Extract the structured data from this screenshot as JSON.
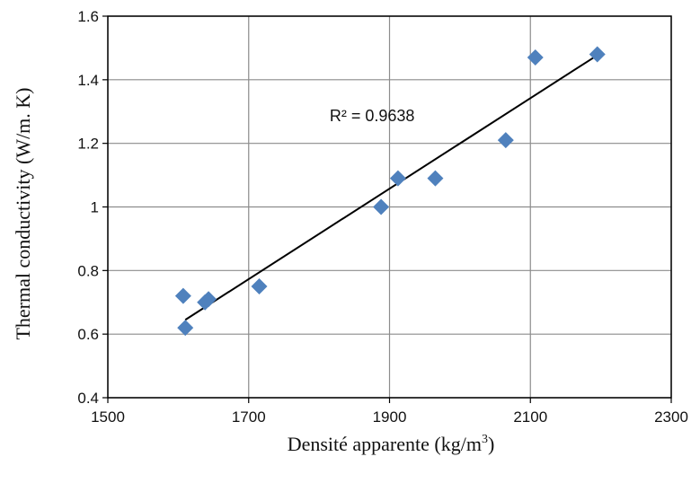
{
  "chart_data": {
    "type": "scatter",
    "title": "",
    "xlabel_prefix": "Densité apparente (kg/m",
    "xlabel_sup": "3",
    "xlabel_suffix": ")",
    "ylabel": "Thermal conductivity (W/m. K)",
    "xlim": [
      1500,
      2300
    ],
    "ylim": [
      0.4,
      1.6
    ],
    "xticks": [
      "1500",
      "1700",
      "1900",
      "2100",
      "2300"
    ],
    "yticks": [
      "0.4",
      "0.6",
      "0.8",
      "1",
      "1.2",
      "1.4",
      "1.6"
    ],
    "grid": true,
    "marker_color": "#4F81BD",
    "series": [
      {
        "marker": "diamond",
        "points": [
          {
            "x": 1607,
            "y": 0.72
          },
          {
            "x": 1610,
            "y": 0.62
          },
          {
            "x": 1638,
            "y": 0.7
          },
          {
            "x": 1643,
            "y": 0.71
          },
          {
            "x": 1715,
            "y": 0.75
          },
          {
            "x": 1888,
            "y": 1.0
          },
          {
            "x": 1912,
            "y": 1.09
          },
          {
            "x": 1965,
            "y": 1.09
          },
          {
            "x": 2065,
            "y": 1.21
          },
          {
            "x": 2107,
            "y": 1.47
          },
          {
            "x": 2195,
            "y": 1.48
          }
        ]
      }
    ],
    "trendline": {
      "type": "linear",
      "color": "#000000",
      "from": {
        "x": 1610,
        "y": 0.645
      },
      "to": {
        "x": 2190,
        "y": 1.47
      },
      "label": "R² = 0.9638",
      "label_at": {
        "x": 1815,
        "y": 1.27
      }
    }
  }
}
